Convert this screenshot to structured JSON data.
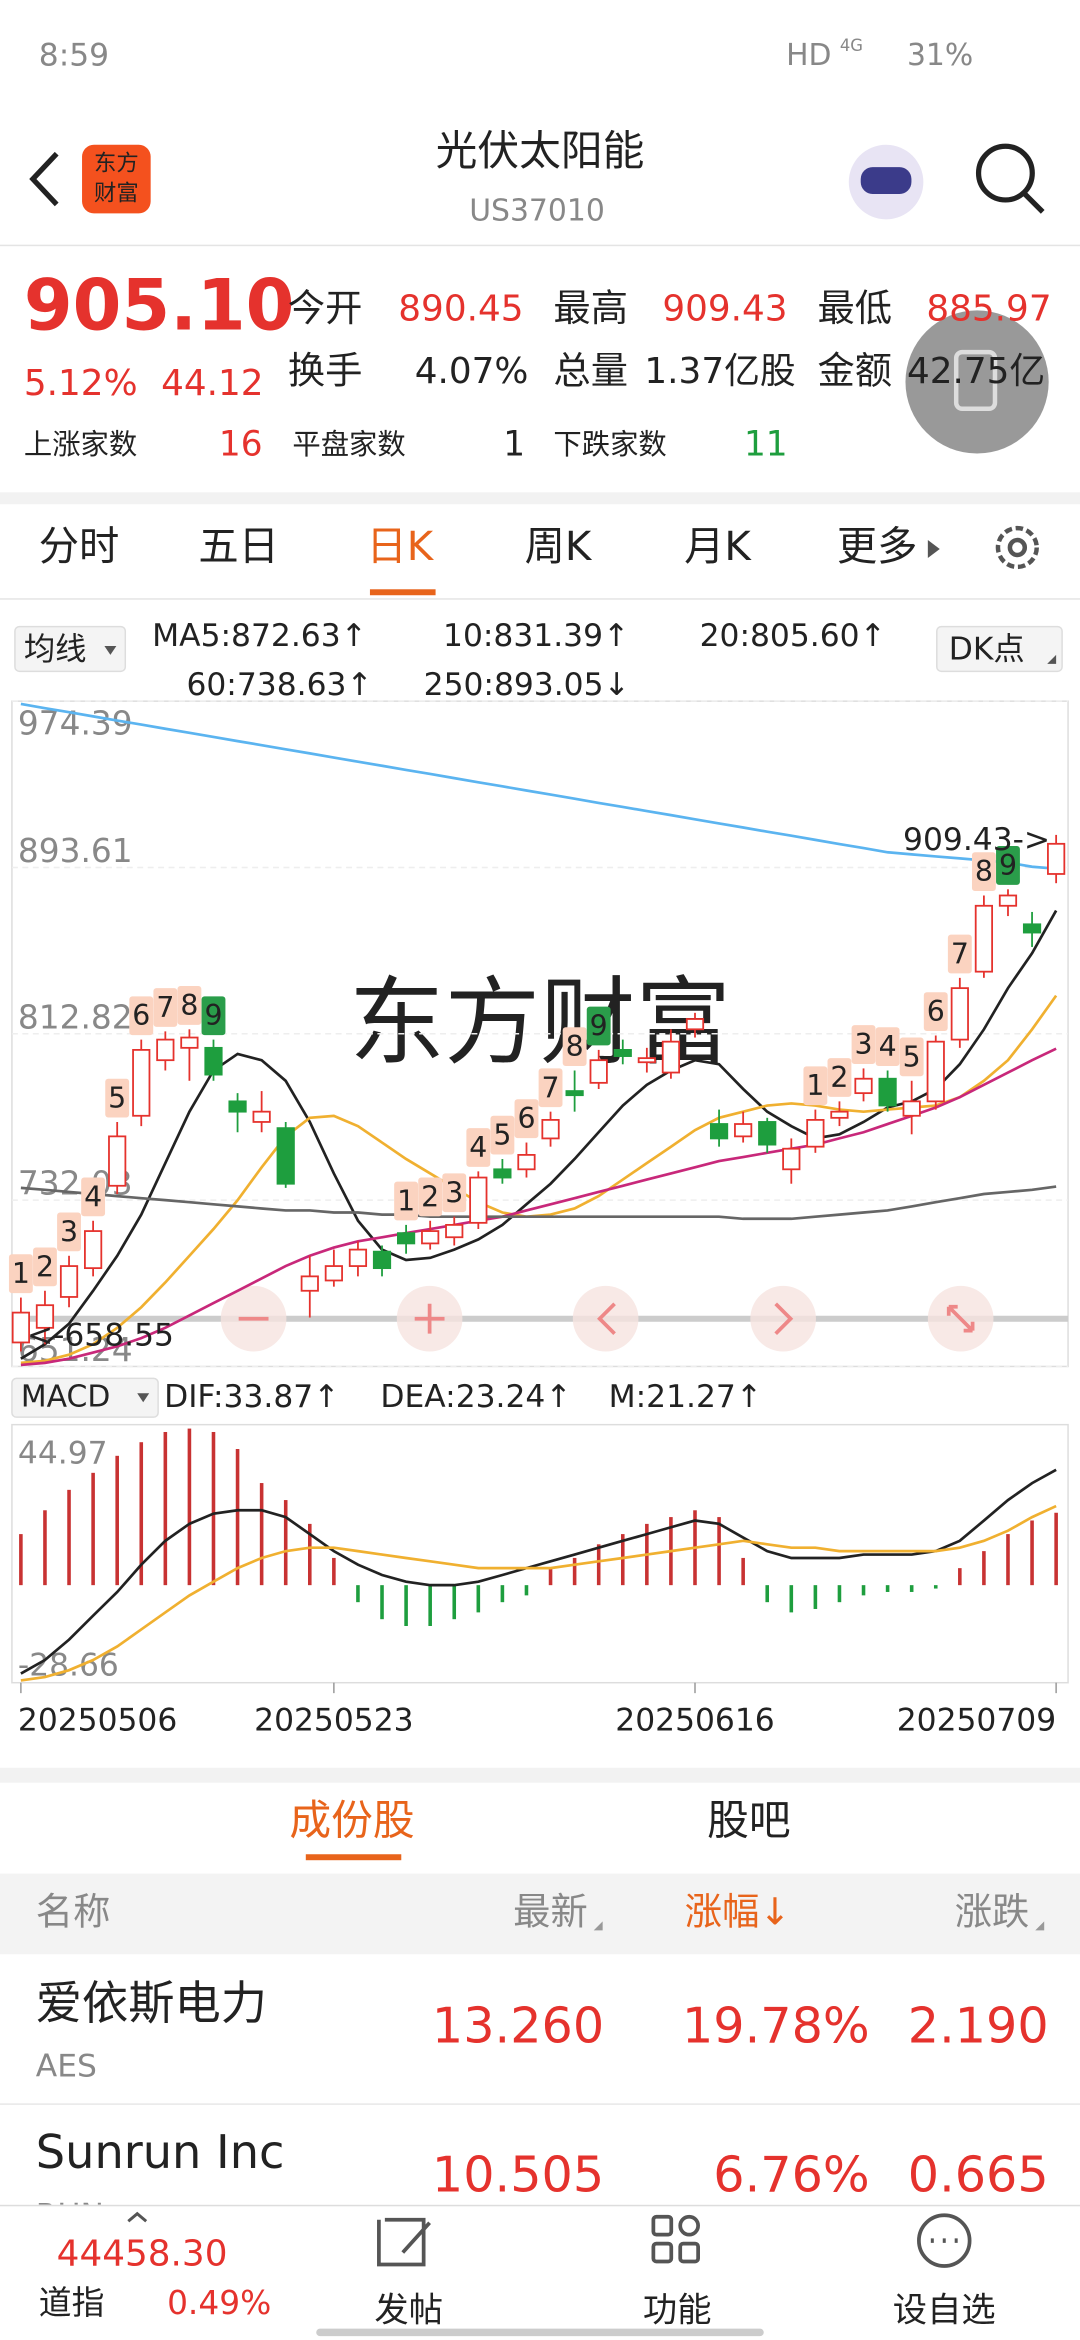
{
  "status_bar": {
    "time": "8:59",
    "network": "HD",
    "signal": "4G",
    "battery": "31%"
  },
  "header": {
    "logo": [
      "东方",
      "财富"
    ],
    "title": "光伏太阳能",
    "code": "US37010"
  },
  "quote": {
    "price": "905.10",
    "change_pct": "5.12%",
    "change": "44.12",
    "fields": [
      [
        "今开",
        "890.45"
      ],
      [
        "最高",
        "909.43"
      ],
      [
        "最低",
        "885.97"
      ],
      [
        "换手",
        "4.07%"
      ],
      [
        "总量",
        "1.37亿股"
      ],
      [
        "金额",
        "42.75亿"
      ]
    ],
    "breadth": [
      [
        "上涨家数",
        "16"
      ],
      [
        "平盘家数",
        "1"
      ],
      [
        "下跌家数",
        "11"
      ]
    ]
  },
  "tabs": {
    "items": [
      "分时",
      "五日",
      "日K",
      "周K",
      "月K",
      "更多"
    ],
    "active": 2
  },
  "chart_controls": {
    "ma_menu": "均线",
    "dk": "DK点",
    "macd_menu": "MACD"
  },
  "watermark": "东方财富",
  "chart_data": [
    {
      "type": "candlestick",
      "categories": [
        "20250506",
        null,
        null,
        null,
        null,
        null,
        null,
        null,
        null,
        null,
        null,
        null,
        null,
        "20250523",
        null,
        null,
        null,
        null,
        null,
        null,
        null,
        null,
        null,
        null,
        null,
        null,
        null,
        null,
        "20250616",
        null,
        null,
        null,
        null,
        null,
        null,
        null,
        null,
        null,
        null,
        null,
        null,
        null,
        null,
        "20250709"
      ],
      "open": [
        662.9,
        670,
        685,
        699,
        739,
        773,
        800,
        806,
        806,
        780,
        770,
        767,
        688,
        693,
        700,
        707,
        716,
        711,
        714,
        721,
        747,
        747,
        762,
        785,
        789,
        805,
        799,
        794,
        815,
        769,
        763,
        770,
        747,
        758,
        772,
        784,
        791,
        773,
        780,
        810,
        843,
        875,
        866,
        890.45
      ],
      "high": [
        684.7,
        688,
        705,
        722,
        770,
        810,
        814,
        815,
        810,
        784,
        785,
        770,
        705,
        708,
        712,
        710,
        720,
        722,
        724,
        746,
        752,
        760,
        775,
        795,
        805,
        810,
        806,
        815,
        823,
        776,
        775,
        772,
        762,
        776,
        780,
        796,
        795,
        790,
        812,
        840,
        880,
        883,
        872,
        909.43
      ],
      "low": [
        658.55,
        662,
        680,
        695,
        735,
        768,
        795,
        790,
        790,
        765,
        765,
        738,
        675,
        690,
        695,
        695,
        706,
        708,
        710,
        718,
        740,
        743,
        758,
        775,
        786,
        798,
        794,
        791,
        811,
        758,
        760,
        755,
        740,
        755,
        768,
        780,
        775,
        764,
        776,
        806,
        840,
        870,
        855,
        885.97
      ],
      "close": [
        677.4,
        681,
        700,
        717,
        763,
        805,
        810,
        811,
        793,
        775,
        775,
        740,
        695,
        700,
        708,
        699,
        711,
        717,
        720,
        743,
        743,
        754,
        771,
        783,
        800,
        802,
        801,
        809,
        820,
        762,
        769,
        759,
        757,
        771,
        775,
        791,
        778,
        780,
        809,
        835,
        875,
        880,
        862,
        905.1
      ],
      "up_color": "#e5322d",
      "down_color": "#1e9e3e",
      "td_counts": [
        1,
        2,
        3,
        4,
        5,
        6,
        7,
        8,
        9,
        null,
        null,
        null,
        null,
        null,
        null,
        null,
        1,
        2,
        3,
        4,
        5,
        6,
        7,
        8,
        9,
        null,
        null,
        null,
        null,
        null,
        null,
        null,
        null,
        1,
        2,
        3,
        4,
        5,
        6,
        7,
        8,
        9,
        null,
        null
      ],
      "high_label": "909.43->",
      "low_label": "<-658.55",
      "series": [
        {
          "name": "MA5:872.63↑",
          "color": "#222222",
          "values": [
            655,
            662,
            672,
            688,
            705,
            725,
            750,
            775,
            795,
            803,
            800,
            790,
            770,
            745,
            722,
            708,
            703,
            704,
            708,
            713,
            720,
            730,
            740,
            752,
            765,
            778,
            788,
            795,
            800,
            798,
            786,
            775,
            768,
            762,
            764,
            770,
            777,
            780,
            786,
            798,
            815,
            835,
            852,
            872.63
          ]
        },
        {
          "name": "10:831.39↑",
          "color": "#f0b030",
          "values": [
            653,
            654,
            657,
            662,
            670,
            680,
            692,
            705,
            718,
            732,
            748,
            763,
            772,
            773,
            768,
            760,
            752,
            745,
            738,
            731,
            726,
            724,
            725,
            728,
            734,
            742,
            750,
            758,
            766,
            772,
            775,
            778,
            779,
            778,
            776,
            775,
            776,
            777,
            778,
            782,
            790,
            800,
            815,
            831.39
          ]
        },
        {
          "name": "20:805.60↑",
          "color": "#c8287a",
          "values": [
            652,
            653,
            655,
            658,
            661,
            665,
            670,
            676,
            682,
            688,
            694,
            700,
            705,
            709,
            712,
            714,
            716,
            718,
            720,
            722,
            724,
            727,
            730,
            733,
            736,
            739,
            742,
            745,
            748,
            751,
            753,
            755,
            757,
            759,
            762,
            765,
            769,
            773,
            777,
            782,
            788,
            794,
            800,
            805.6
          ]
        },
        {
          "name": "60:738.63↑",
          "color": "#666666",
          "values": [
            738,
            737,
            736,
            735,
            734,
            733,
            732,
            731,
            730,
            729,
            728,
            727,
            727,
            726,
            726,
            725,
            725,
            724,
            724,
            724,
            724,
            724,
            724,
            724,
            724,
            724,
            724,
            724,
            724,
            724,
            723,
            723,
            723,
            724,
            725,
            726,
            727,
            729,
            731,
            733,
            735,
            736,
            737,
            738.63
          ]
        },
        {
          "name": "250:893.05↓",
          "color": "#5bb4f0",
          "values": [
            973,
            971,
            969,
            967,
            965,
            963,
            961,
            959,
            957,
            955,
            953,
            951,
            949,
            947,
            945,
            943,
            941,
            939,
            937,
            935,
            933,
            931,
            929,
            927,
            925,
            923,
            921,
            919,
            917,
            915,
            913,
            911,
            909,
            907,
            905,
            903,
            901,
            900,
            899,
            898,
            897,
            896,
            894,
            893.05
          ]
        }
      ],
      "ylim": [
        651.24,
        974.39
      ],
      "yticks": [
        974.39,
        893.61,
        812.82,
        732.03,
        651.24
      ],
      "grid": true
    },
    {
      "type": "macd",
      "series": [
        {
          "name": "M:21.27↑",
          "kind": "bar",
          "up_color": "#c83232",
          "down_color": "#1e9e3e",
          "values": [
            15,
            22,
            28,
            33,
            38,
            42,
            45,
            46,
            45,
            40,
            30,
            25,
            18,
            8,
            -5,
            -10,
            -12,
            -12,
            -10,
            -8,
            -5,
            -3,
            5,
            8,
            12,
            15,
            18,
            20,
            22,
            20,
            8,
            -5,
            -8,
            -7,
            -5,
            -3,
            -2,
            -2,
            -1,
            5,
            10,
            15,
            19,
            21.27
          ]
        },
        {
          "name": "DIF:33.87↑",
          "kind": "line",
          "color": "#222222",
          "values": [
            -26,
            -22,
            -16,
            -9,
            -2,
            6,
            13,
            18,
            21,
            22,
            22,
            20,
            15,
            10,
            6,
            3,
            1,
            0,
            0,
            1,
            3,
            5,
            7,
            9,
            11,
            13,
            15,
            17,
            19,
            18,
            14,
            10,
            8,
            8,
            8,
            9,
            9,
            9,
            10,
            13,
            19,
            25,
            30,
            33.87
          ]
        },
        {
          "name": "DEA:23.24↑",
          "kind": "line",
          "color": "#f0b030",
          "values": [
            -28,
            -27,
            -25,
            -22,
            -18,
            -13,
            -8,
            -3,
            1,
            5,
            8,
            10,
            11,
            11,
            10,
            9,
            8,
            7,
            6,
            5,
            5,
            5,
            5,
            6,
            7,
            8,
            9,
            10,
            11,
            12,
            13,
            12,
            11,
            11,
            10,
            10,
            10,
            10,
            10,
            11,
            13,
            16,
            20,
            23.24
          ]
        }
      ],
      "ylim": [
        -28.66,
        44.97
      ],
      "yticks": [
        44.97,
        -28.66
      ]
    }
  ],
  "list_tabs": {
    "items": [
      "成份股",
      "股吧"
    ],
    "active": 0
  },
  "table": {
    "columns": [
      "名称",
      "最新",
      "涨幅↓",
      "涨跌"
    ],
    "rows": [
      {
        "name": "爱依斯电力",
        "code": "AES",
        "values": [
          "13.260",
          "19.78%",
          "2.190"
        ]
      },
      {
        "name": "Sunrun Inc",
        "code": "RUN",
        "values": [
          "10.505",
          "6.76%",
          "0.665"
        ]
      }
    ]
  },
  "bottom_bar": {
    "index_value": "44458.30",
    "index_name": "道指",
    "index_change": "0.49%",
    "buttons": [
      "发帖",
      "功能",
      "设自选"
    ]
  }
}
